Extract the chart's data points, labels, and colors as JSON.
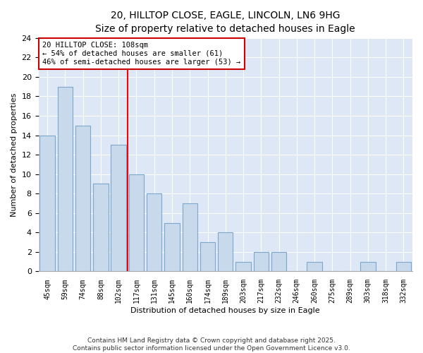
{
  "title1": "20, HILLTOP CLOSE, EAGLE, LINCOLN, LN6 9HG",
  "title2": "Size of property relative to detached houses in Eagle",
  "xlabel": "Distribution of detached houses by size in Eagle",
  "ylabel": "Number of detached properties",
  "categories": [
    "45sqm",
    "59sqm",
    "74sqm",
    "88sqm",
    "102sqm",
    "117sqm",
    "131sqm",
    "145sqm",
    "160sqm",
    "174sqm",
    "189sqm",
    "203sqm",
    "217sqm",
    "232sqm",
    "246sqm",
    "260sqm",
    "275sqm",
    "289sqm",
    "303sqm",
    "318sqm",
    "332sqm"
  ],
  "values": [
    14,
    19,
    15,
    9,
    13,
    10,
    8,
    5,
    7,
    3,
    4,
    1,
    2,
    2,
    0,
    1,
    0,
    0,
    1,
    0,
    1
  ],
  "bar_color": "#c9d9ec",
  "bar_edge_color": "#7ba7cc",
  "ylim": [
    0,
    24
  ],
  "yticks": [
    0,
    2,
    4,
    6,
    8,
    10,
    12,
    14,
    16,
    18,
    20,
    22,
    24
  ],
  "red_line_x": 4.5,
  "annotation_text": "20 HILLTOP CLOSE: 108sqm\n← 54% of detached houses are smaller (61)\n46% of semi-detached houses are larger (53) →",
  "annotation_box_facecolor": "#ffffff",
  "annotation_box_edgecolor": "#cc0000",
  "footer_text": "Contains HM Land Registry data © Crown copyright and database right 2025.\nContains public sector information licensed under the Open Government Licence v3.0.",
  "bg_color": "#ffffff",
  "plot_bg_color": "#dde7f5",
  "grid_color": "#ffffff",
  "title1_fontsize": 10,
  "title2_fontsize": 9,
  "xlabel_fontsize": 8,
  "ylabel_fontsize": 8,
  "bar_width": 0.85
}
